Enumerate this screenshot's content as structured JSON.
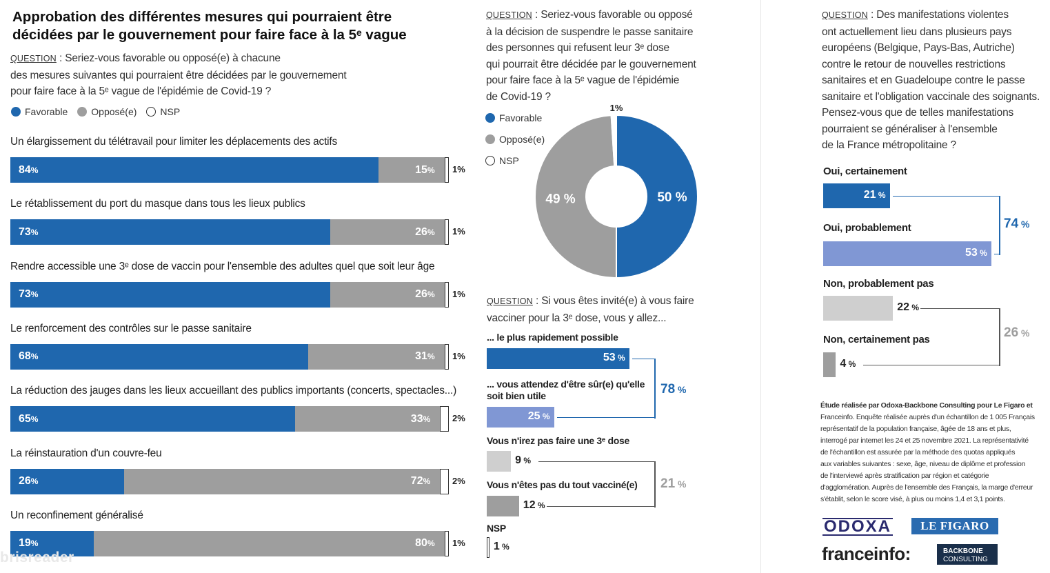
{
  "colors": {
    "favorable": "#1f67ae",
    "oppose": "#9e9e9e",
    "light_blue": "#8097d4",
    "light_grey": "#cfcfcf",
    "grey": "#9e9e9e"
  },
  "left": {
    "title_l1": "Approbation des différentes mesures qui pourraient être",
    "title_l2": "décidées par le gouvernement pour faire face à la 5ᵉ vague",
    "q_label": "QUESTION",
    "q_l1": " : Seriez-vous favorable ou opposé(e) à chacune",
    "q_l2": "des mesures suivantes qui pourraient être décidées par le gouvernement",
    "q_l3": "pour faire face à la 5ᵉ vague de l'épidémie de Covid-19 ?",
    "legend": {
      "fav": "Favorable",
      "opp": "Opposé(e)",
      "nsp": "NSP"
    },
    "pct": "%"
  },
  "chart_data": [
    {
      "type": "bar",
      "stacked": true,
      "orientation": "horizontal",
      "categories": [
        "Un élargissement du télétravail pour limiter les déplacements des actifs",
        "Le rétablissement du port du masque dans tous les lieux publics",
        "Rendre accessible une 3ᵉ dose de vaccin pour l'ensemble des adultes quel que soit leur âge",
        "Le renforcement des contrôles sur le passe sanitaire",
        "La réduction des jauges dans les lieux accueillant des publics importants (concerts, spectacles...)",
        "La réinstauration d'un couvre-feu",
        "Un reconfinement généralisé"
      ],
      "series": [
        {
          "name": "Favorable",
          "values": [
            84,
            73,
            73,
            68,
            65,
            26,
            19
          ]
        },
        {
          "name": "Opposé(e)",
          "values": [
            15,
            26,
            26,
            31,
            33,
            72,
            80
          ]
        },
        {
          "name": "NSP",
          "values": [
            1,
            1,
            1,
            1,
            2,
            2,
            1
          ]
        }
      ]
    },
    {
      "type": "pie",
      "q_label": "QUESTION",
      "question_lines": [
        " : Seriez-vous favorable ou opposé",
        "à la décision de suspendre le passe sanitaire",
        "des personnes qui refusent leur 3ᵉ dose",
        "qui pourrait être décidée par le gouvernement",
        "pour faire face à la 5ᵉ vague de l'épidémie",
        "de Covid-19 ?"
      ],
      "legend": [
        "Favorable",
        "Opposé(e)",
        "NSP"
      ],
      "slices": [
        {
          "name": "Favorable",
          "value": 50
        },
        {
          "name": "Opposé(e)",
          "value": 49
        },
        {
          "name": "NSP",
          "value": 1
        }
      ]
    },
    {
      "type": "bar",
      "orientation": "horizontal",
      "q_label": "QUESTION",
      "question_lines": [
        " : Si vous êtes invité(e) à vous faire",
        "vacciner pour la 3ᵉ dose, vous y allez..."
      ],
      "categories": [
        "... le plus rapidement possible",
        "... vous attendez d'être sûr(e) qu'elle soit bien utile",
        "Vous n'irez pas faire une 3ᵉ dose",
        "Vous n'êtes pas du tout vacciné(e)",
        "NSP"
      ],
      "values": [
        53,
        25,
        9,
        12,
        1
      ],
      "groups": [
        {
          "total": 78
        },
        {
          "total": 21
        }
      ]
    },
    {
      "type": "bar",
      "orientation": "horizontal",
      "q_label": "QUESTION",
      "question_lines": [
        " : Des manifestations violentes",
        "ont actuellement lieu dans plusieurs pays",
        "européens (Belgique, Pays-Bas, Autriche)",
        "contre le retour de nouvelles restrictions",
        "sanitaires et en Guadeloupe contre le passe",
        "sanitaire et l'obligation vaccinale des soignants.",
        "Pensez-vous que de telles manifestations",
        "pourraient se généraliser à l'ensemble",
        "de la France métropolitaine ?"
      ],
      "categories": [
        "Oui, certainement",
        "Oui, probablement",
        "Non, probablement pas",
        "Non, certainement pas"
      ],
      "values": [
        21,
        53,
        22,
        4
      ],
      "groups": [
        {
          "total": 74
        },
        {
          "total": 26
        }
      ]
    }
  ],
  "footnote": {
    "l1": "Étude réalisée par Odoxa-Backbone Consulting pour Le Figaro et",
    "l2": "Franceinfo. Enquête réalisée auprès d'un échantillon de 1 005 Français",
    "l3": "représentatif de la population française, âgée de 18 ans et plus,",
    "l4": "interrogé par internet les 24 et 25 novembre 2021. La représentativité",
    "l5": "de l'échantillon est assurée par la méthode  des quotas appliqués",
    "l6": "aux variables suivantes : sexe, âge, niveau de diplôme et profession",
    "l7": "de l'interviewé après stratification par région et catégorie",
    "l8": "d'agglomération. Auprès de l'ensemble des Français, la marge d'erreur",
    "l9": "s'établit, selon le score visé, à plus ou moins 1,4 et 3,1 points."
  },
  "logos": {
    "odoxa": "ODOXA",
    "figaro": "LE FIGARO",
    "franceinfo": "franceinfo:",
    "backbone_1": "BACKBONE",
    "backbone_2": "CONSULTING",
    "watermark": "brisreader"
  }
}
